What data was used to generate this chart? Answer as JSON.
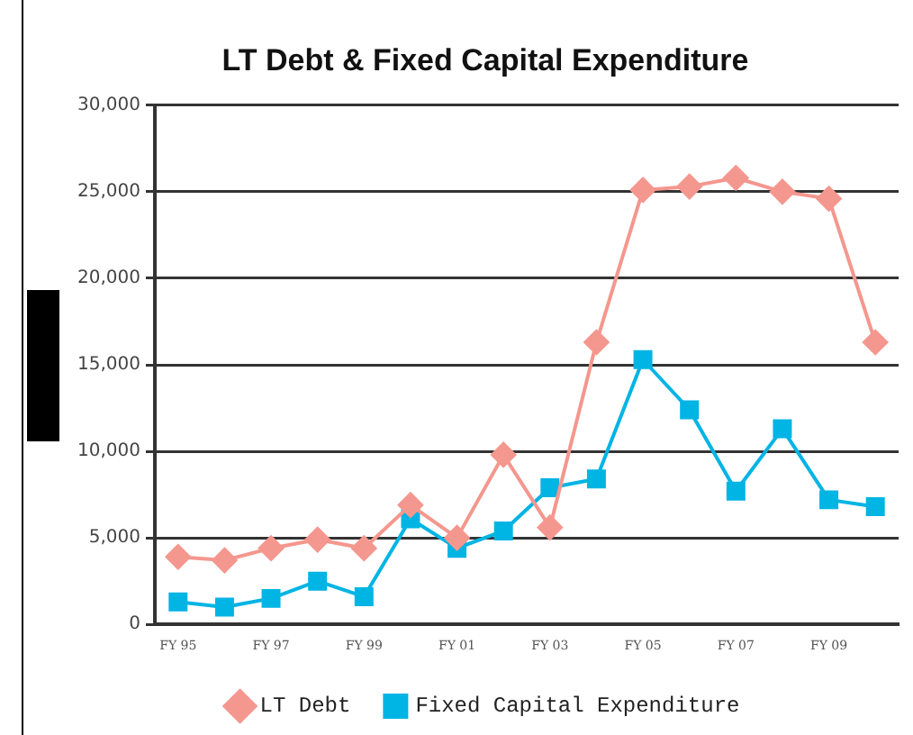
{
  "chart_data": {
    "type": "line",
    "title": "LT Debt & Fixed Capital Expenditure",
    "categories": [
      "FY 95",
      null,
      "FY 97",
      null,
      "FY 99",
      null,
      "FY 01",
      null,
      "FY 03",
      null,
      "FY 05",
      null,
      "FY 07",
      null,
      "FY 09",
      null
    ],
    "series": [
      {
        "name": "LT Debt",
        "color": "#f4978e",
        "marker": "diamond",
        "values": [
          3900,
          3700,
          4400,
          4900,
          4400,
          6900,
          5000,
          9800,
          5600,
          16300,
          25100,
          25300,
          25800,
          25000,
          24600,
          16300
        ]
      },
      {
        "name": "Fixed Capital Expenditure",
        "color": "#00b4e4",
        "marker": "square",
        "values": [
          1300,
          1000,
          1500,
          2500,
          1600,
          6100,
          4400,
          5400,
          7900,
          8400,
          15300,
          12400,
          7700,
          11300,
          7200,
          6800
        ]
      }
    ],
    "ylim": [
      0,
      30000
    ],
    "yticks": [
      {
        "value": 0,
        "label": "0"
      },
      {
        "value": 5000,
        "label": "5,000"
      },
      {
        "value": 10000,
        "label": "10,000"
      },
      {
        "value": 15000,
        "label": "15,000"
      },
      {
        "value": 20000,
        "label": "20,000"
      },
      {
        "value": 25000,
        "label": "25,000"
      },
      {
        "value": 30000,
        "label": "30,000"
      }
    ],
    "grid": "y",
    "legend": "bottom"
  }
}
